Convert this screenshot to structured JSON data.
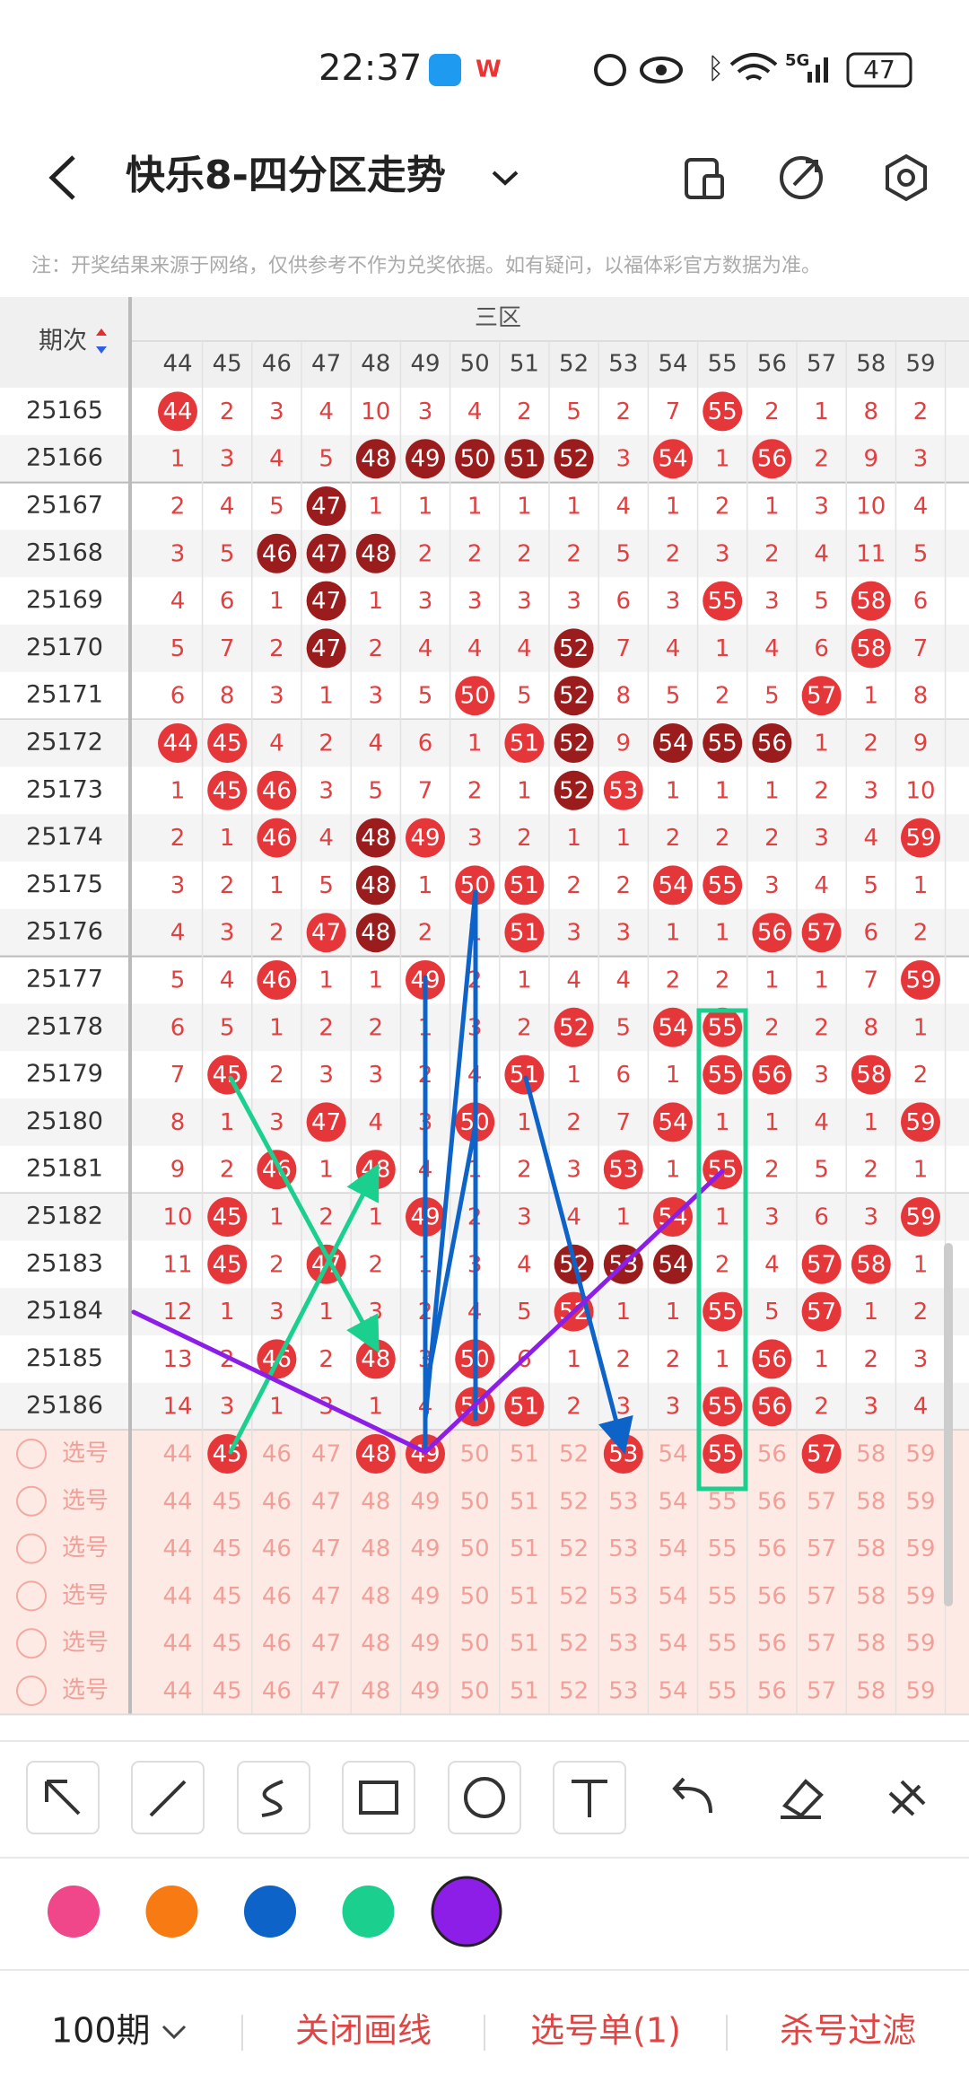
{
  "status": {
    "time": "22:37",
    "network": "5G",
    "battery": "47"
  },
  "header": {
    "title": "快乐8-四分区走势"
  },
  "note": "注：开奖结果来源于网络，仅供参考不作为兑奖依据。如有疑问，以福体彩官方数据为准。",
  "table": {
    "zone": "三区",
    "period_header": "期次",
    "columns": [
      44,
      45,
      46,
      47,
      48,
      49,
      50,
      51,
      52,
      53,
      54,
      55,
      56,
      57,
      58,
      59
    ],
    "rows": [
      {
        "period": "25165",
        "values": [
          44,
          2,
          3,
          4,
          10,
          3,
          4,
          2,
          5,
          2,
          7,
          55,
          2,
          1,
          8,
          2
        ],
        "marks": [
          "r",
          "n",
          "n",
          "n",
          "n",
          "n",
          "n",
          "n",
          "n",
          "n",
          "n",
          "r",
          "n",
          "n",
          "n",
          "n"
        ]
      },
      {
        "period": "25166",
        "values": [
          1,
          3,
          4,
          5,
          48,
          49,
          50,
          51,
          52,
          3,
          54,
          1,
          56,
          2,
          9,
          3
        ],
        "marks": [
          "n",
          "n",
          "n",
          "n",
          "d",
          "d",
          "d",
          "d",
          "d",
          "n",
          "r",
          "n",
          "r",
          "n",
          "n",
          "n"
        ]
      },
      {
        "period": "25167",
        "values": [
          2,
          4,
          5,
          47,
          1,
          1,
          1,
          1,
          1,
          4,
          1,
          2,
          1,
          3,
          10,
          4
        ],
        "marks": [
          "n",
          "n",
          "n",
          "d",
          "n",
          "n",
          "n",
          "n",
          "n",
          "n",
          "n",
          "n",
          "n",
          "n",
          "n",
          "n"
        ]
      },
      {
        "period": "25168",
        "values": [
          3,
          5,
          46,
          47,
          48,
          2,
          2,
          2,
          2,
          5,
          2,
          3,
          2,
          4,
          11,
          5
        ],
        "marks": [
          "n",
          "n",
          "d",
          "d",
          "d",
          "n",
          "n",
          "n",
          "n",
          "n",
          "n",
          "n",
          "n",
          "n",
          "n",
          "n"
        ]
      },
      {
        "period": "25169",
        "values": [
          4,
          6,
          1,
          47,
          1,
          3,
          3,
          3,
          3,
          6,
          3,
          55,
          3,
          5,
          58,
          6
        ],
        "marks": [
          "n",
          "n",
          "n",
          "d",
          "n",
          "n",
          "n",
          "n",
          "n",
          "n",
          "n",
          "r",
          "n",
          "n",
          "r",
          "n"
        ]
      },
      {
        "period": "25170",
        "values": [
          5,
          7,
          2,
          47,
          2,
          4,
          4,
          4,
          52,
          7,
          4,
          1,
          4,
          6,
          58,
          7
        ],
        "marks": [
          "n",
          "n",
          "n",
          "d",
          "n",
          "n",
          "n",
          "n",
          "d",
          "n",
          "n",
          "n",
          "n",
          "n",
          "r",
          "n"
        ]
      },
      {
        "period": "25171",
        "values": [
          6,
          8,
          3,
          1,
          3,
          5,
          50,
          5,
          52,
          8,
          5,
          2,
          5,
          57,
          1,
          8
        ],
        "marks": [
          "n",
          "n",
          "n",
          "n",
          "n",
          "n",
          "r",
          "n",
          "d",
          "n",
          "n",
          "n",
          "n",
          "r",
          "n",
          "n"
        ]
      },
      {
        "period": "25172",
        "values": [
          44,
          45,
          4,
          2,
          4,
          6,
          1,
          51,
          52,
          9,
          54,
          55,
          56,
          1,
          2,
          9
        ],
        "marks": [
          "r",
          "r",
          "n",
          "n",
          "n",
          "n",
          "n",
          "r",
          "d",
          "n",
          "d",
          "d",
          "d",
          "n",
          "n",
          "n"
        ]
      },
      {
        "period": "25173",
        "values": [
          1,
          45,
          46,
          3,
          5,
          7,
          2,
          1,
          52,
          53,
          1,
          1,
          1,
          2,
          3,
          10
        ],
        "marks": [
          "n",
          "r",
          "r",
          "n",
          "n",
          "n",
          "n",
          "n",
          "d",
          "r",
          "n",
          "n",
          "n",
          "n",
          "n",
          "n"
        ]
      },
      {
        "period": "25174",
        "values": [
          2,
          1,
          46,
          4,
          48,
          49,
          3,
          2,
          1,
          1,
          2,
          2,
          2,
          3,
          4,
          59
        ],
        "marks": [
          "n",
          "n",
          "r",
          "n",
          "d",
          "r",
          "n",
          "n",
          "n",
          "n",
          "n",
          "n",
          "n",
          "n",
          "n",
          "r"
        ]
      },
      {
        "period": "25175",
        "values": [
          3,
          2,
          1,
          5,
          48,
          1,
          50,
          51,
          2,
          2,
          54,
          55,
          3,
          4,
          5,
          1
        ],
        "marks": [
          "n",
          "n",
          "n",
          "n",
          "d",
          "n",
          "r",
          "r",
          "n",
          "n",
          "r",
          "r",
          "n",
          "n",
          "n",
          "n"
        ]
      },
      {
        "period": "25176",
        "values": [
          4,
          3,
          2,
          47,
          48,
          2,
          1,
          51,
          3,
          3,
          1,
          1,
          56,
          57,
          6,
          2
        ],
        "marks": [
          "n",
          "n",
          "n",
          "r",
          "d",
          "n",
          "n",
          "r",
          "n",
          "n",
          "n",
          "n",
          "r",
          "r",
          "n",
          "n"
        ]
      },
      {
        "period": "25177",
        "values": [
          5,
          4,
          46,
          1,
          1,
          49,
          2,
          1,
          4,
          4,
          2,
          2,
          1,
          1,
          7,
          59
        ],
        "marks": [
          "n",
          "n",
          "r",
          "n",
          "n",
          "r",
          "n",
          "n",
          "n",
          "n",
          "n",
          "n",
          "n",
          "n",
          "n",
          "r"
        ]
      },
      {
        "period": "25178",
        "values": [
          6,
          5,
          1,
          2,
          2,
          1,
          3,
          2,
          52,
          5,
          54,
          55,
          2,
          2,
          8,
          1
        ],
        "marks": [
          "n",
          "n",
          "n",
          "n",
          "n",
          "n",
          "n",
          "n",
          "r",
          "n",
          "r",
          "r",
          "n",
          "n",
          "n",
          "n"
        ]
      },
      {
        "period": "25179",
        "values": [
          7,
          45,
          2,
          3,
          3,
          2,
          4,
          51,
          1,
          6,
          1,
          55,
          56,
          3,
          58,
          2
        ],
        "marks": [
          "n",
          "r",
          "n",
          "n",
          "n",
          "n",
          "n",
          "r",
          "n",
          "n",
          "n",
          "r",
          "r",
          "n",
          "r",
          "n"
        ]
      },
      {
        "period": "25180",
        "values": [
          8,
          1,
          3,
          47,
          4,
          3,
          50,
          1,
          2,
          7,
          54,
          1,
          1,
          4,
          1,
          59
        ],
        "marks": [
          "n",
          "n",
          "n",
          "r",
          "n",
          "n",
          "r",
          "n",
          "n",
          "n",
          "r",
          "n",
          "n",
          "n",
          "n",
          "r"
        ]
      },
      {
        "period": "25181",
        "values": [
          9,
          2,
          46,
          1,
          48,
          4,
          1,
          2,
          3,
          53,
          1,
          55,
          2,
          5,
          2,
          1
        ],
        "marks": [
          "n",
          "n",
          "r",
          "n",
          "r",
          "n",
          "n",
          "n",
          "n",
          "r",
          "n",
          "r",
          "n",
          "n",
          "n",
          "n"
        ]
      },
      {
        "period": "25182",
        "values": [
          10,
          45,
          1,
          2,
          1,
          49,
          2,
          3,
          4,
          1,
          54,
          1,
          3,
          6,
          3,
          59
        ],
        "marks": [
          "n",
          "r",
          "n",
          "n",
          "n",
          "r",
          "n",
          "n",
          "n",
          "n",
          "r",
          "n",
          "n",
          "n",
          "n",
          "r"
        ]
      },
      {
        "period": "25183",
        "values": [
          11,
          45,
          2,
          47,
          2,
          1,
          3,
          4,
          52,
          53,
          54,
          2,
          4,
          57,
          58,
          1
        ],
        "marks": [
          "n",
          "r",
          "n",
          "r",
          "n",
          "n",
          "n",
          "n",
          "d",
          "d",
          "d",
          "n",
          "n",
          "r",
          "r",
          "n"
        ]
      },
      {
        "period": "25184",
        "values": [
          12,
          1,
          3,
          1,
          3,
          2,
          4,
          5,
          52,
          1,
          1,
          55,
          5,
          57,
          1,
          2
        ],
        "marks": [
          "n",
          "n",
          "n",
          "n",
          "n",
          "n",
          "n",
          "n",
          "r",
          "n",
          "n",
          "r",
          "n",
          "r",
          "n",
          "n"
        ]
      },
      {
        "period": "25185",
        "values": [
          13,
          2,
          46,
          2,
          48,
          3,
          50,
          6,
          1,
          2,
          2,
          1,
          56,
          1,
          2,
          3
        ],
        "marks": [
          "n",
          "n",
          "r",
          "n",
          "r",
          "n",
          "r",
          "n",
          "n",
          "n",
          "n",
          "n",
          "r",
          "n",
          "n",
          "n"
        ]
      },
      {
        "period": "25186",
        "values": [
          14,
          3,
          1,
          3,
          1,
          4,
          50,
          51,
          2,
          3,
          3,
          55,
          56,
          2,
          3,
          4
        ],
        "marks": [
          "n",
          "n",
          "n",
          "n",
          "n",
          "n",
          "r",
          "r",
          "n",
          "n",
          "n",
          "r",
          "r",
          "n",
          "n",
          "n"
        ]
      }
    ]
  },
  "selection": {
    "label": "选号",
    "picked": [
      45,
      48,
      49,
      53,
      55,
      57
    ],
    "rows": [
      [
        44,
        45,
        46,
        47,
        48,
        49,
        50,
        51,
        52,
        53,
        54,
        55,
        56,
        57,
        58,
        59
      ],
      [
        44,
        45,
        46,
        47,
        48,
        49,
        50,
        51,
        52,
        53,
        54,
        55,
        56,
        57,
        58,
        59
      ],
      [
        44,
        45,
        46,
        47,
        48,
        49,
        50,
        51,
        52,
        53,
        54,
        55,
        56,
        57,
        58,
        59
      ],
      [
        44,
        45,
        46,
        47,
        48,
        49,
        50,
        51,
        52,
        53,
        54,
        55,
        56,
        57,
        58,
        59
      ],
      [
        44,
        45,
        46,
        47,
        48,
        49,
        50,
        51,
        52,
        53,
        54,
        55,
        56,
        57,
        58,
        59
      ],
      [
        44,
        45,
        46,
        47,
        48,
        49,
        50,
        51,
        52,
        53,
        54,
        55,
        56,
        57,
        58,
        59
      ]
    ]
  },
  "palette": [
    "#f0478a",
    "#f77b12",
    "#0d63c8",
    "#1bcf8f",
    "#8d1ee8"
  ],
  "bottom": {
    "periods": "100期",
    "close_lines": "关闭画线",
    "ticket": "选号单(1)",
    "filter": "杀号过滤"
  }
}
